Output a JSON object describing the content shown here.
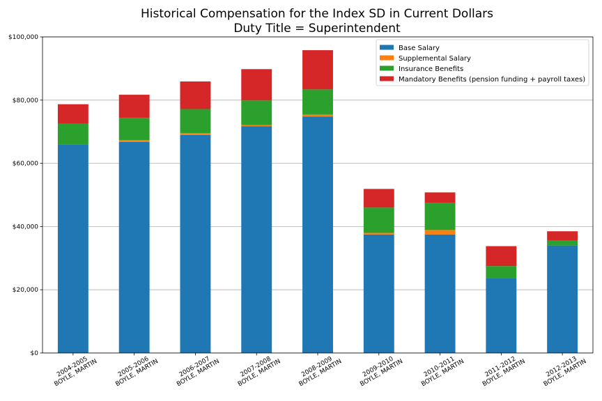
{
  "chart_data": {
    "type": "bar",
    "stacked": true,
    "title": "Historical Compensation for the Index SD in Current Dollars",
    "subtitle": "Duty Title = Superintendent",
    "xlabel": "",
    "ylabel": "",
    "ylim": [
      0,
      100000
    ],
    "yticks": [
      0,
      20000,
      40000,
      60000,
      80000,
      100000
    ],
    "ytick_labels": [
      "$0",
      "$20,000",
      "$40,000",
      "$60,000",
      "$80,000",
      "$100,000"
    ],
    "grid": "horizontal",
    "legend_position": "top-right",
    "categories": [
      [
        "2004-2005",
        "BOYLE, MARTIN"
      ],
      [
        "2005-2006",
        "BOYLE, MARTIN"
      ],
      [
        "2006-2007",
        "BOYLE, MARTIN"
      ],
      [
        "2007-2008",
        "BOYLE, MARTIN"
      ],
      [
        "2008-2009",
        "BOYLE, MARTIN"
      ],
      [
        "2009-2010",
        "BOYLE, MARTIN"
      ],
      [
        "2010-2011",
        "BOYLE, MARTIN"
      ],
      [
        "2011-2012",
        "BOYLE, MARTIN"
      ],
      [
        "2012-2013",
        "BOYLE, MARTIN"
      ]
    ],
    "series": [
      {
        "name": "Base Salary",
        "color": "#1f77b4",
        "values": [
          66000,
          66800,
          69000,
          71700,
          74800,
          37500,
          37500,
          23700,
          34000
        ]
      },
      {
        "name": "Supplemental Salary",
        "color": "#ff7f0e",
        "values": [
          0,
          600,
          600,
          400,
          600,
          500,
          1400,
          0,
          0
        ]
      },
      {
        "name": "Insurance Benefits",
        "color": "#2ca02c",
        "values": [
          6500,
          7000,
          7600,
          7800,
          8000,
          8000,
          8600,
          3800,
          1500
        ]
      },
      {
        "name": "Mandatory Benefits (pension funding + payroll taxes)",
        "color": "#d62728",
        "values": [
          6200,
          7300,
          8700,
          9900,
          12400,
          5900,
          3300,
          6300,
          3000
        ]
      }
    ]
  }
}
